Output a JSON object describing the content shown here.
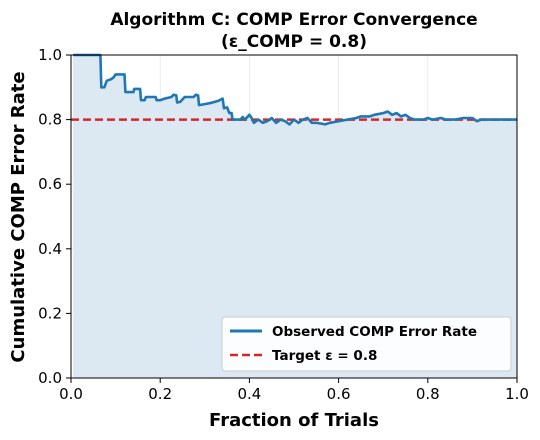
{
  "chart_data": {
    "type": "line",
    "title_line1": "Algorithm C: COMP Error Convergence",
    "title_line2": "(ε_COMP = 0.8)",
    "xlabel": "Fraction of Trials",
    "ylabel": "Cumulative COMP Error Rate",
    "xlim": [
      0.0,
      1.0
    ],
    "ylim": [
      0.0,
      1.0
    ],
    "xticks": [
      "0.0",
      "0.2",
      "0.4",
      "0.6",
      "0.8",
      "1.0"
    ],
    "yticks": [
      "0.0",
      "0.2",
      "0.4",
      "0.6",
      "0.8",
      "1.0"
    ],
    "grid": true,
    "legend_position": "lower-right",
    "series": [
      {
        "name": "Observed COMP Error Rate",
        "color": "#1f77b4",
        "fill": "#dce8f2",
        "points": [
          [
            0.005,
            1.0
          ],
          [
            0.066,
            1.0
          ],
          [
            0.068,
            0.9
          ],
          [
            0.075,
            0.9
          ],
          [
            0.08,
            0.92
          ],
          [
            0.09,
            0.925
          ],
          [
            0.095,
            0.93
          ],
          [
            0.1,
            0.94
          ],
          [
            0.12,
            0.94
          ],
          [
            0.122,
            0.885
          ],
          [
            0.14,
            0.885
          ],
          [
            0.142,
            0.895
          ],
          [
            0.155,
            0.895
          ],
          [
            0.157,
            0.86
          ],
          [
            0.165,
            0.86
          ],
          [
            0.168,
            0.87
          ],
          [
            0.19,
            0.87
          ],
          [
            0.192,
            0.86
          ],
          [
            0.2,
            0.86
          ],
          [
            0.21,
            0.865
          ],
          [
            0.225,
            0.87
          ],
          [
            0.23,
            0.877
          ],
          [
            0.236,
            0.875
          ],
          [
            0.238,
            0.853
          ],
          [
            0.245,
            0.855
          ],
          [
            0.255,
            0.87
          ],
          [
            0.275,
            0.87
          ],
          [
            0.28,
            0.877
          ],
          [
            0.285,
            0.875
          ],
          [
            0.287,
            0.845
          ],
          [
            0.3,
            0.848
          ],
          [
            0.315,
            0.852
          ],
          [
            0.33,
            0.858
          ],
          [
            0.34,
            0.865
          ],
          [
            0.343,
            0.835
          ],
          [
            0.35,
            0.838
          ],
          [
            0.355,
            0.82
          ],
          [
            0.36,
            0.82
          ],
          [
            0.362,
            0.8
          ],
          [
            0.38,
            0.8
          ],
          [
            0.385,
            0.808
          ],
          [
            0.39,
            0.8
          ],
          [
            0.4,
            0.815
          ],
          [
            0.405,
            0.805
          ],
          [
            0.41,
            0.79
          ],
          [
            0.42,
            0.8
          ],
          [
            0.43,
            0.79
          ],
          [
            0.44,
            0.795
          ],
          [
            0.45,
            0.805
          ],
          [
            0.46,
            0.79
          ],
          [
            0.47,
            0.8
          ],
          [
            0.48,
            0.795
          ],
          [
            0.49,
            0.785
          ],
          [
            0.5,
            0.8
          ],
          [
            0.51,
            0.79
          ],
          [
            0.52,
            0.8
          ],
          [
            0.53,
            0.805
          ],
          [
            0.54,
            0.79
          ],
          [
            0.55,
            0.79
          ],
          [
            0.56,
            0.788
          ],
          [
            0.57,
            0.785
          ],
          [
            0.58,
            0.79
          ],
          [
            0.6,
            0.795
          ],
          [
            0.62,
            0.8
          ],
          [
            0.64,
            0.805
          ],
          [
            0.65,
            0.81
          ],
          [
            0.67,
            0.81
          ],
          [
            0.68,
            0.815
          ],
          [
            0.7,
            0.82
          ],
          [
            0.71,
            0.825
          ],
          [
            0.72,
            0.815
          ],
          [
            0.73,
            0.82
          ],
          [
            0.74,
            0.81
          ],
          [
            0.75,
            0.815
          ],
          [
            0.76,
            0.805
          ],
          [
            0.77,
            0.8
          ],
          [
            0.79,
            0.8
          ],
          [
            0.8,
            0.805
          ],
          [
            0.81,
            0.8
          ],
          [
            0.83,
            0.805
          ],
          [
            0.84,
            0.8
          ],
          [
            0.86,
            0.8
          ],
          [
            0.88,
            0.805
          ],
          [
            0.9,
            0.805
          ],
          [
            0.91,
            0.795
          ],
          [
            0.92,
            0.8
          ],
          [
            0.94,
            0.8
          ],
          [
            0.96,
            0.8
          ],
          [
            0.98,
            0.8
          ],
          [
            1.0,
            0.8
          ]
        ]
      },
      {
        "name": "Target ε = 0.8",
        "color": "#d62728",
        "style": "dashed",
        "value": 0.8
      }
    ]
  }
}
